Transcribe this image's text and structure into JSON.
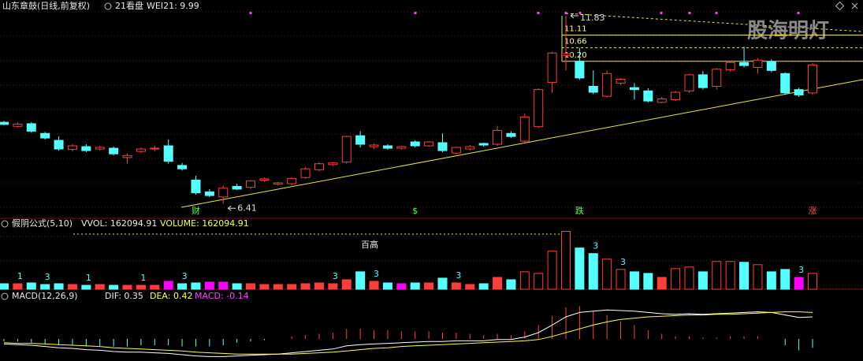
{
  "chart_data": [
    {
      "type": "candlestick",
      "title": "山东章鼓(日线,前复权)",
      "subtitle": "21看盘",
      "indicator": "WEI21: 9.99",
      "watermark": "股海明灯",
      "log_scale": true,
      "ylim": [
        6.14,
        12.46
      ],
      "up_color": "#ff3c3c",
      "down_color": "#54ffff",
      "open": [
        8.36,
        8.25,
        8.32,
        8.06,
        7.88,
        7.65,
        7.72,
        7.66,
        7.68,
        7.45,
        7.6,
        7.68,
        7.74,
        7.26,
        6.92,
        6.66,
        6.55,
        6.78,
        6.76,
        6.92,
        6.83,
        6.84,
        6.98,
        7.16,
        7.28,
        7.34,
        8.0,
        7.72,
        7.74,
        7.68,
        7.84,
        7.74,
        7.82,
        7.56,
        7.66,
        7.8,
        7.78,
        8.06,
        7.86,
        8.24,
        9.52,
        10.4,
        10.2,
        9.4,
        9.1,
        9.5,
        9.36,
        9.26,
        8.92,
        9.0,
        9.26,
        9.76,
        9.4,
        9.92,
        10.16,
        10.0,
        10.18,
        9.8,
        9.3,
        9.2
      ],
      "high": [
        8.4,
        8.36,
        8.36,
        8.1,
        7.98,
        7.78,
        7.78,
        7.74,
        7.72,
        7.55,
        7.7,
        7.74,
        7.9,
        7.32,
        7.02,
        6.72,
        6.8,
        6.84,
        6.92,
        6.98,
        6.88,
        6.98,
        7.22,
        7.34,
        7.34,
        8.0,
        8.12,
        7.8,
        7.78,
        7.74,
        7.88,
        7.86,
        8.06,
        7.72,
        7.76,
        7.82,
        8.26,
        8.12,
        8.6,
        9.34,
        10.52,
        11.83,
        10.66,
        9.9,
        9.9,
        9.66,
        9.5,
        9.34,
        9.08,
        9.26,
        9.8,
        9.88,
        9.98,
        10.2,
        10.7,
        10.3,
        10.26,
        9.84,
        9.36,
        10.14
      ],
      "low": [
        8.28,
        8.22,
        8.08,
        7.9,
        7.62,
        7.6,
        7.58,
        7.62,
        7.5,
        7.3,
        7.56,
        7.6,
        7.3,
        7.14,
        6.6,
        6.55,
        6.41,
        6.7,
        6.72,
        6.88,
        6.8,
        6.8,
        6.95,
        7.12,
        7.24,
        7.3,
        7.7,
        7.66,
        7.64,
        7.64,
        7.7,
        7.72,
        7.58,
        7.52,
        7.62,
        7.72,
        7.74,
        7.94,
        7.82,
        8.2,
        9.2,
        9.9,
        9.6,
        9.16,
        9.06,
        9.44,
        9.0,
        8.92,
        8.9,
        8.96,
        9.2,
        9.3,
        9.3,
        9.86,
        10.0,
        9.8,
        9.84,
        9.14,
        9.08,
        9.14
      ],
      "close": [
        8.3,
        8.31,
        8.12,
        7.94,
        7.66,
        7.74,
        7.62,
        7.7,
        7.54,
        7.5,
        7.66,
        7.68,
        7.36,
        7.18,
        6.64,
        6.58,
        6.74,
        6.72,
        6.9,
        6.95,
        6.86,
        6.96,
        7.18,
        7.3,
        7.32,
        7.98,
        7.78,
        7.76,
        7.68,
        7.72,
        7.74,
        7.84,
        7.62,
        7.7,
        7.72,
        7.76,
        8.14,
        7.98,
        8.5,
        9.3,
        10.48,
        10.46,
        9.66,
        9.22,
        9.8,
        9.62,
        9.3,
        8.96,
        9.02,
        9.22,
        9.76,
        9.36,
        9.94,
        10.16,
        10.06,
        10.24,
        9.9,
        9.2,
        9.14,
        10.08
      ],
      "event_labels": [
        null,
        null,
        null,
        null,
        null,
        null,
        null,
        null,
        null,
        null,
        null,
        null,
        null,
        null,
        "财",
        null,
        null,
        null,
        null,
        null,
        null,
        null,
        null,
        null,
        null,
        null,
        null,
        null,
        null,
        null,
        "$",
        null,
        null,
        null,
        null,
        null,
        null,
        null,
        null,
        null,
        null,
        null,
        "跌",
        null,
        null,
        null,
        null,
        null,
        null,
        null,
        null,
        null,
        null,
        null,
        null,
        null,
        null,
        null,
        null,
        "涨"
      ],
      "low_label": 6.41,
      "high_label": 11.83,
      "levels": [
        11.11,
        10.66,
        {
          "value": 10.2,
          "label": "10.20"
        }
      ]
    },
    {
      "type": "bar",
      "title": "假阴公式(5,10)",
      "legend": [
        "VVOL: 162094.91",
        "VOLUME: 162094.91"
      ],
      "annotation": "百高",
      "ylim": [
        0,
        700000
      ],
      "values": [
        56700,
        56700,
        64800,
        48600,
        56700,
        48600,
        40500,
        48600,
        40500,
        40500,
        40500,
        40500,
        81000,
        56700,
        64800,
        72900,
        72900,
        56700,
        56700,
        48600,
        48600,
        48600,
        56700,
        64800,
        56700,
        97200,
        178200,
        81000,
        64800,
        56700,
        64800,
        64800,
        113400,
        64800,
        48600,
        56700,
        121500,
        97200,
        178200,
        162000,
        388800,
        591300,
        421200,
        364500,
        307800,
        202500,
        178200,
        162000,
        121500,
        210600,
        226800,
        178200,
        283500,
        283500,
        275400,
        251100,
        178200,
        202500,
        121500,
        162094.91
      ],
      "colors": [
        "#54ffff",
        "#ff3c3c",
        "#54ffff",
        "#54ffff",
        "#54ffff",
        "#ff3c3c",
        "#54ffff",
        "#ff3c3c",
        "#54ffff",
        "#ff3c3c",
        "#ff3c3c",
        "#ff3c3c",
        "#ff00ff",
        "#54ffff",
        "#54ffff",
        "#ff00ff",
        "#ff00ff",
        "#54ffff",
        "#ff3c3c",
        "#ff3c3c",
        "#ff3c3c",
        "#ff3c3c",
        "#ff3c3c",
        "#ff3c3c",
        "#ff3c3c",
        "#ff3c3c",
        "#54ffff",
        "#ff3c3c",
        "#54ffff",
        "#ff00ff",
        "#54ffff",
        "#ff3c3c",
        "#54ffff",
        "#ff3c3c",
        "#ff3c3c",
        "#54ffff",
        "#ff3c3c",
        "#54ffff",
        "#ff3c3c",
        "#ff3c3c",
        "#ff3c3c",
        "#ff3c3c",
        "#54ffff",
        "#54ffff",
        "#ff3c3c",
        "#ff3c3c",
        "#54ffff",
        "#54ffff",
        "#ff3c3c",
        "#ff3c3c",
        "#ff3c3c",
        "#54ffff",
        "#ff3c3c",
        "#ff3c3c",
        "#54ffff",
        "#ff3c3c",
        "#54ffff",
        "#54ffff",
        "#ff00ff",
        "#ff3c3c"
      ],
      "signal_labels": [
        null,
        "1",
        null,
        "3",
        null,
        null,
        "1",
        null,
        null,
        null,
        "1",
        null,
        null,
        "3",
        null,
        null,
        null,
        null,
        null,
        null,
        null,
        null,
        null,
        null,
        "3",
        null,
        null,
        "3",
        null,
        null,
        null,
        null,
        null,
        "3",
        null,
        null,
        null,
        null,
        null,
        null,
        null,
        null,
        null,
        "3",
        null,
        "3",
        null,
        null,
        null,
        null,
        null,
        null,
        null,
        null,
        null,
        null,
        null,
        null,
        "3",
        null
      ]
    },
    {
      "type": "macd",
      "title": "MACD(12,26,9)",
      "ylim": [
        -0.35,
        0.75
      ],
      "series": [
        {
          "name": "DIF: 0.35",
          "color": "#ffffff",
          "values": [
            -0.08,
            -0.09,
            -0.1,
            -0.12,
            -0.14,
            -0.15,
            -0.17,
            -0.18,
            -0.2,
            -0.21,
            -0.21,
            -0.22,
            -0.23,
            -0.25,
            -0.27,
            -0.28,
            -0.28,
            -0.27,
            -0.26,
            -0.25,
            -0.24,
            -0.22,
            -0.2,
            -0.18,
            -0.16,
            -0.11,
            -0.09,
            -0.08,
            -0.07,
            -0.06,
            -0.05,
            -0.04,
            -0.04,
            -0.03,
            -0.03,
            -0.03,
            -0.01,
            -0.01,
            0.03,
            0.1,
            0.22,
            0.35,
            0.42,
            0.44,
            0.46,
            0.45,
            0.44,
            0.42,
            0.4,
            0.39,
            0.4,
            0.39,
            0.4,
            0.41,
            0.42,
            0.43,
            0.42,
            0.38,
            0.34,
            0.35
          ]
        },
        {
          "name": "DEA: 0.42",
          "color": "#ffff40",
          "values": [
            -0.06,
            -0.07,
            -0.07,
            -0.08,
            -0.09,
            -0.1,
            -0.11,
            -0.12,
            -0.14,
            -0.15,
            -0.16,
            -0.17,
            -0.18,
            -0.19,
            -0.21,
            -0.22,
            -0.23,
            -0.24,
            -0.24,
            -0.24,
            -0.24,
            -0.24,
            -0.23,
            -0.22,
            -0.21,
            -0.19,
            -0.17,
            -0.15,
            -0.14,
            -0.12,
            -0.11,
            -0.1,
            -0.09,
            -0.08,
            -0.07,
            -0.06,
            -0.05,
            -0.04,
            -0.03,
            -0.01,
            0.04,
            0.1,
            0.16,
            0.22,
            0.27,
            0.31,
            0.33,
            0.35,
            0.36,
            0.37,
            0.38,
            0.38,
            0.39,
            0.39,
            0.4,
            0.41,
            0.42,
            0.43,
            0.43,
            0.42
          ]
        }
      ],
      "histogram": {
        "name": "MACD: -0.14",
        "color": "#ff40ff",
        "values": [
          -0.04,
          -0.04,
          -0.06,
          -0.08,
          -0.1,
          -0.1,
          -0.12,
          -0.12,
          -0.12,
          -0.12,
          -0.1,
          -0.1,
          -0.1,
          -0.12,
          -0.12,
          -0.12,
          -0.1,
          -0.06,
          -0.04,
          -0.02,
          0.0,
          0.04,
          0.06,
          0.08,
          0.1,
          0.16,
          0.16,
          0.14,
          0.14,
          0.12,
          0.12,
          0.12,
          0.1,
          0.1,
          0.08,
          0.06,
          0.08,
          0.06,
          0.12,
          0.22,
          0.36,
          0.5,
          0.52,
          0.44,
          0.38,
          0.28,
          0.22,
          0.14,
          0.08,
          0.04,
          0.04,
          0.02,
          0.02,
          0.04,
          0.04,
          0.04,
          0.0,
          -0.1,
          -0.18,
          -0.14
        ]
      }
    }
  ]
}
